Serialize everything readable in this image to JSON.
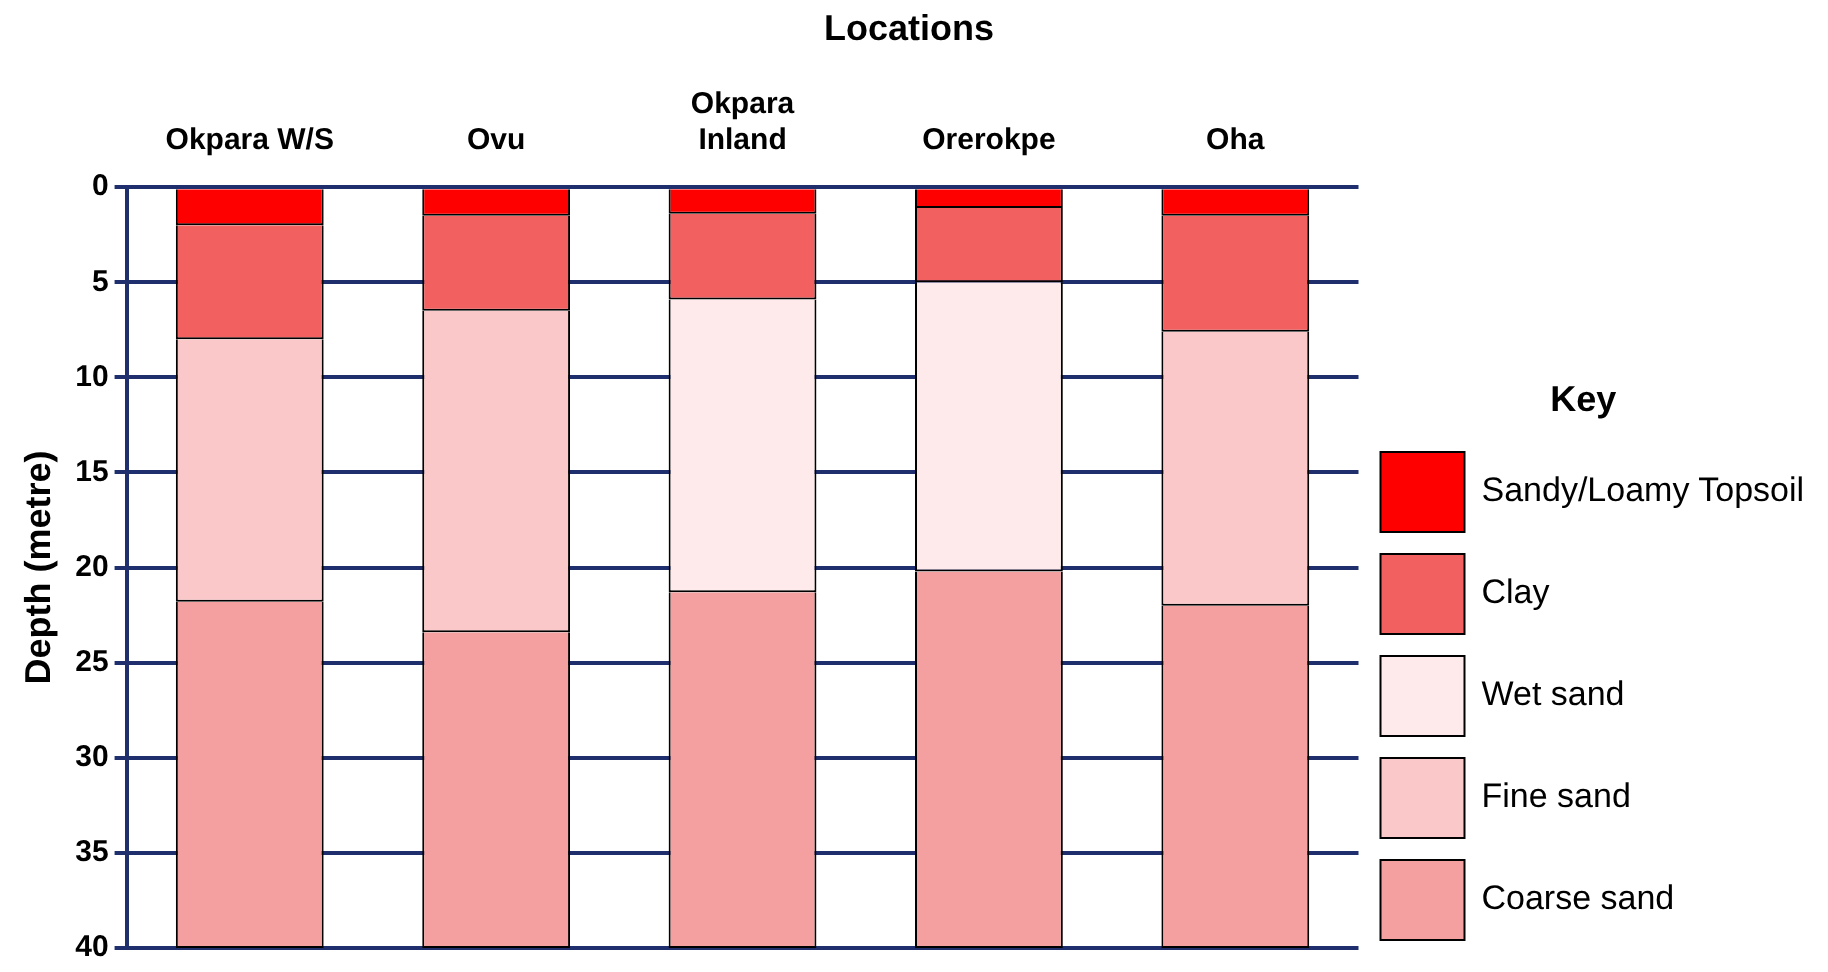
{
  "chart_data": {
    "type": "bar",
    "stacked": true,
    "title": "Locations",
    "ylabel": "Depth (metre)",
    "legend_title": "Key",
    "legend": "right",
    "categories": [
      "Okpara W/S",
      "Ovu",
      "Okpara Inland",
      "Orerokpe",
      "Oha"
    ],
    "series": [
      {
        "name": "Sandy/Loamy Topsoil",
        "color": "#ff0000",
        "values": [
          2,
          1.5,
          1.4,
          1.1,
          1.5
        ]
      },
      {
        "name": "Clay",
        "color": "#f26060",
        "values": [
          6,
          5,
          4.5,
          3.9,
          6.1
        ]
      },
      {
        "name": "Wet sand",
        "color": "#feeaea",
        "values": [
          null,
          null,
          15.4,
          15.2,
          null
        ]
      },
      {
        "name": "Fine sand",
        "color": "#fac8c8",
        "values": [
          13.8,
          16.9,
          null,
          null,
          14.4
        ]
      },
      {
        "name": "Coarse sand",
        "color": "#f5a0a0",
        "values": [
          18.2,
          16.6,
          18.7,
          19.8,
          18
        ]
      }
    ],
    "ylim": [
      40,
      0
    ],
    "yticks": [
      0,
      5,
      10,
      15,
      20,
      25,
      30,
      35,
      40
    ],
    "grid": "y"
  }
}
